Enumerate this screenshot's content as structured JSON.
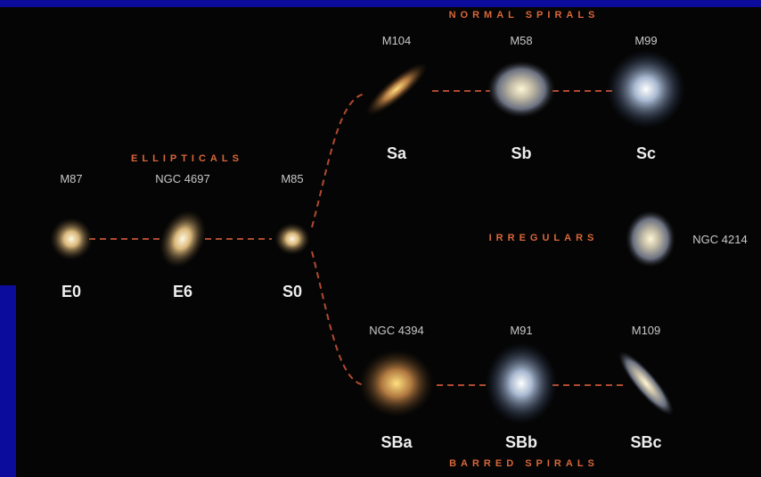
{
  "groups": {
    "ellipticals": "ELLIPTICALS",
    "normal_spirals": "NORMAL SPIRALS",
    "irregulars": "IRREGULARS",
    "barred_spirals": "BARRED SPIRALS"
  },
  "nodes": [
    {
      "name": "M87",
      "class": "E0"
    },
    {
      "name": "NGC 4697",
      "class": "E6"
    },
    {
      "name": "M85",
      "class": "S0"
    },
    {
      "name": "M104",
      "class": "Sa"
    },
    {
      "name": "M58",
      "class": "Sb"
    },
    {
      "name": "M99",
      "class": "Sc"
    },
    {
      "name": "NGC 4214"
    },
    {
      "name": "NGC 4394",
      "class": "SBa"
    },
    {
      "name": "M91",
      "class": "SBb"
    },
    {
      "name": "M109",
      "class": "SBc"
    }
  ]
}
